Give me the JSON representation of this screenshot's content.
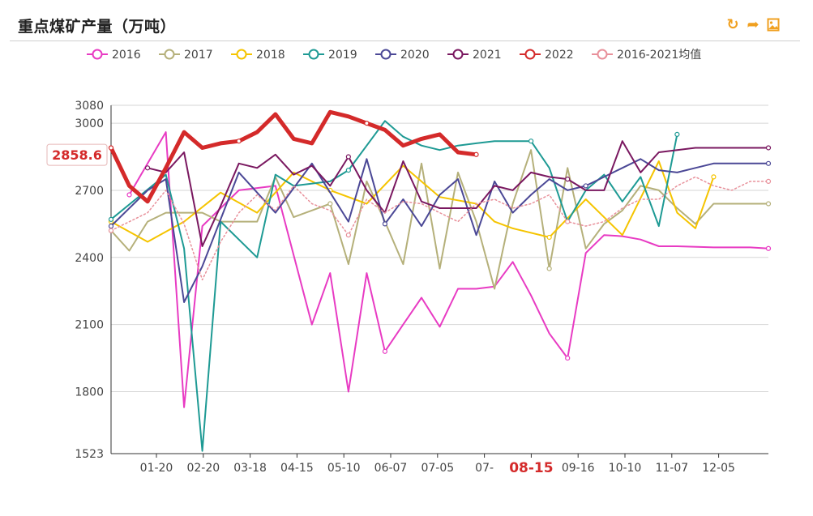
{
  "header": {
    "title": "重点煤矿产量（万吨）",
    "tool_icons": [
      "refresh-icon",
      "share-icon",
      "image-download-icon"
    ]
  },
  "chart_data": {
    "type": "line",
    "title": "重点煤矿产量（万吨）",
    "y_ticks": [
      1523,
      1800,
      2100,
      2400,
      2700,
      3000,
      3080
    ],
    "ylim": [
      1523,
      3080
    ],
    "x_tick_labels": [
      "01-20",
      "02-20",
      "03-18",
      "04-15",
      "05-10",
      "06-07",
      "07-05",
      "07-",
      "08-15",
      "09-16",
      "10-10",
      "11-07",
      "12-05"
    ],
    "highlight_x_label": "08-15",
    "current_value_label": "2858.6",
    "current_value": 2858.6,
    "legend_position": "top",
    "x_domain": [
      1,
      37
    ],
    "series": [
      {
        "name": "2016",
        "color": "#e83bc3",
        "style": "solid",
        "width": 2,
        "x": [
          2,
          4,
          5,
          6,
          8,
          10,
          12,
          13,
          14,
          15,
          16,
          17,
          18,
          19,
          20,
          21,
          22,
          23,
          24,
          25,
          26,
          27,
          28,
          29,
          30,
          31,
          32,
          34,
          36,
          37
        ],
        "y": [
          2680,
          2960,
          1730,
          2540,
          2700,
          2720,
          2100,
          2330,
          1800,
          2330,
          1980,
          2100,
          2220,
          2090,
          2260,
          2260,
          2270,
          2380,
          2230,
          2060,
          1950,
          2420,
          2500,
          2495,
          2480,
          2450,
          2450,
          2445,
          2445,
          2440
        ]
      },
      {
        "name": "2017",
        "color": "#b5b07a",
        "style": "solid",
        "width": 2,
        "x": [
          1,
          2,
          3,
          4,
          5,
          6,
          7,
          8,
          9,
          10,
          11,
          12,
          13,
          14,
          15,
          16,
          17,
          18,
          19,
          20,
          21,
          22,
          23,
          24,
          25,
          26,
          27,
          28,
          29,
          30,
          31,
          32,
          33,
          34,
          35,
          36,
          37
        ],
        "y": [
          2520,
          2430,
          2560,
          2600,
          2600,
          2600,
          2560,
          2560,
          2560,
          2760,
          2580,
          2610,
          2640,
          2370,
          2740,
          2560,
          2370,
          2820,
          2350,
          2780,
          2560,
          2260,
          2640,
          2880,
          2350,
          2800,
          2440,
          2550,
          2610,
          2720,
          2700,
          2620,
          2550,
          2640,
          2640,
          2640,
          2640
        ]
      },
      {
        "name": "2018",
        "color": "#f5c400",
        "style": "solid",
        "width": 2,
        "x": [
          1,
          3,
          5,
          7,
          9,
          11,
          13,
          15,
          17,
          19,
          21,
          22,
          23,
          25,
          27,
          29,
          31,
          32,
          33,
          34
        ],
        "y": [
          2560,
          2470,
          2560,
          2690,
          2600,
          2780,
          2700,
          2640,
          2810,
          2670,
          2640,
          2560,
          2530,
          2490,
          2660,
          2500,
          2830,
          2600,
          2530,
          2760
        ]
      },
      {
        "name": "2019",
        "color": "#1e9a94",
        "style": "solid",
        "width": 2,
        "x": [
          1,
          4,
          5,
          6,
          7,
          9,
          10,
          11,
          13,
          14,
          16,
          17,
          18,
          19,
          20,
          21,
          22,
          23,
          24,
          25,
          26,
          27,
          28,
          29,
          30,
          31,
          32
        ],
        "y": [
          2570,
          2770,
          2440,
          1535,
          2560,
          2400,
          2770,
          2720,
          2740,
          2790,
          3010,
          2940,
          2900,
          2880,
          2900,
          2910,
          2920,
          2920,
          2920,
          2800,
          2560,
          2700,
          2770,
          2650,
          2760,
          2540,
          2950
        ]
      },
      {
        "name": "2020",
        "color": "#4b4896",
        "style": "solid",
        "width": 2,
        "x": [
          1,
          3,
          4,
          5,
          6,
          8,
          10,
          12,
          14,
          15,
          16,
          17,
          18,
          19,
          20,
          21,
          22,
          23,
          24,
          25,
          26,
          27,
          28,
          29,
          30,
          31,
          32,
          33,
          34,
          35,
          36,
          37
        ],
        "y": [
          2540,
          2700,
          2750,
          2200,
          2360,
          2780,
          2600,
          2820,
          2560,
          2840,
          2550,
          2660,
          2540,
          2680,
          2750,
          2500,
          2740,
          2600,
          2680,
          2750,
          2700,
          2720,
          2760,
          2800,
          2840,
          2790,
          2780,
          2800,
          2820,
          2820,
          2820,
          2820
        ]
      },
      {
        "name": "2021",
        "color": "#7a1860",
        "style": "solid",
        "width": 2,
        "x": [
          3,
          4,
          5,
          6,
          7,
          8,
          9,
          10,
          11,
          12,
          13,
          14,
          15,
          16,
          17,
          18,
          19,
          20,
          21,
          22,
          23,
          24,
          25,
          26,
          27,
          28,
          29,
          30,
          31,
          32,
          33,
          34,
          35,
          36,
          37
        ],
        "y": [
          2800,
          2780,
          2870,
          2450,
          2630,
          2820,
          2800,
          2860,
          2770,
          2810,
          2720,
          2850,
          2700,
          2600,
          2830,
          2650,
          2620,
          2620,
          2620,
          2720,
          2700,
          2780,
          2760,
          2750,
          2700,
          2700,
          2920,
          2780,
          2870,
          2880,
          2890,
          2890,
          2890,
          2890,
          2890
        ]
      },
      {
        "name": "2022",
        "color": "#d42a2a",
        "style": "solid",
        "width": 5,
        "x": [
          1,
          2,
          3,
          4,
          5,
          6,
          7,
          8,
          9,
          10,
          11,
          12,
          13,
          14,
          15,
          16,
          17,
          18,
          19,
          20,
          21
        ],
        "y": [
          2890,
          2720,
          2650,
          2800,
          2960,
          2890,
          2910,
          2920,
          2960,
          3040,
          2930,
          2910,
          3050,
          3030,
          3000,
          2970,
          2900,
          2930,
          2950,
          2870,
          2860
        ]
      },
      {
        "name": "2016-2021均值",
        "color": "#e8909a",
        "style": "dotted",
        "width": 1.5,
        "x": [
          1,
          3,
          4,
          5,
          6,
          7,
          8,
          9,
          10,
          11,
          12,
          13,
          14,
          15,
          16,
          17,
          18,
          19,
          20,
          21,
          22,
          23,
          24,
          25,
          26,
          27,
          28,
          29,
          30,
          31,
          32,
          33,
          34,
          35,
          36,
          37
        ],
        "y": [
          2520,
          2600,
          2700,
          2550,
          2300,
          2470,
          2600,
          2680,
          2610,
          2720,
          2640,
          2610,
          2500,
          2660,
          2600,
          2650,
          2640,
          2600,
          2560,
          2640,
          2660,
          2620,
          2640,
          2680,
          2560,
          2540,
          2560,
          2620,
          2660,
          2660,
          2720,
          2760,
          2720,
          2700,
          2740,
          2740
        ]
      }
    ]
  }
}
